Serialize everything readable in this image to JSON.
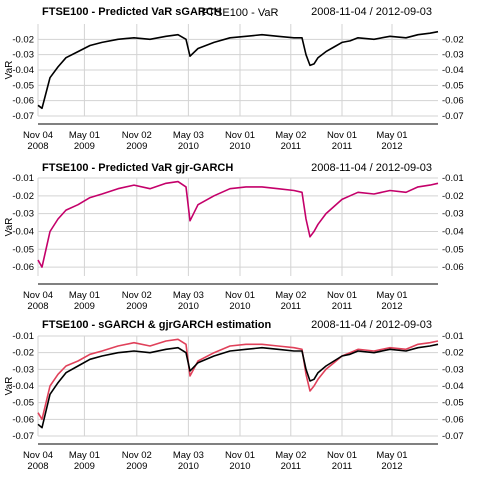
{
  "figure_title": "FTSE100 - VaR",
  "chart_data": [
    {
      "type": "line",
      "title": "FTSE100 - Predicted VaR sGARCH",
      "date_range": "2008-11-04 / 2012-09-03",
      "ylabel": "VaR",
      "ylim": [
        -0.07,
        -0.01
      ],
      "yticks": [
        "-0.02",
        "-0.03",
        "-0.04",
        "-0.05",
        "-0.06",
        "-0.07"
      ],
      "x_ticks": [
        {
          "t": 0.0,
          "line1": "Nov 04",
          "line2": "2008"
        },
        {
          "t": 0.116,
          "line1": "May 01",
          "line2": "2009"
        },
        {
          "t": 0.247,
          "line1": "Nov 02",
          "line2": "2009"
        },
        {
          "t": 0.376,
          "line1": "May 03",
          "line2": "2010"
        },
        {
          "t": 0.505,
          "line1": "Nov 01",
          "line2": "2010"
        },
        {
          "t": 0.632,
          "line1": "May 02",
          "line2": "2011"
        },
        {
          "t": 0.76,
          "line1": "Nov 01",
          "line2": "2011"
        },
        {
          "t": 0.885,
          "line1": "May 01",
          "line2": "2012"
        }
      ],
      "grid": true,
      "series": [
        {
          "color": "#000000",
          "x": [
            0,
            0.01,
            0.02,
            0.03,
            0.05,
            0.07,
            0.1,
            0.13,
            0.16,
            0.2,
            0.24,
            0.28,
            0.32,
            0.35,
            0.37,
            0.38,
            0.4,
            0.44,
            0.48,
            0.52,
            0.56,
            0.6,
            0.64,
            0.66,
            0.67,
            0.68,
            0.69,
            0.7,
            0.72,
            0.74,
            0.76,
            0.78,
            0.8,
            0.84,
            0.88,
            0.92,
            0.95,
            0.98,
            1.0
          ],
          "values": [
            -0.063,
            -0.065,
            -0.055,
            -0.045,
            -0.038,
            -0.032,
            -0.028,
            -0.024,
            -0.022,
            -0.02,
            -0.019,
            -0.02,
            -0.018,
            -0.017,
            -0.02,
            -0.031,
            -0.026,
            -0.022,
            -0.019,
            -0.018,
            -0.017,
            -0.018,
            -0.019,
            -0.019,
            -0.03,
            -0.037,
            -0.036,
            -0.032,
            -0.028,
            -0.025,
            -0.022,
            -0.021,
            -0.019,
            -0.02,
            -0.018,
            -0.019,
            -0.017,
            -0.016,
            -0.015
          ]
        }
      ]
    },
    {
      "type": "line",
      "title": "FTSE100 - Predicted VaR gjr-GARCH",
      "date_range": "2008-11-04 / 2012-09-03",
      "ylabel": "VaR",
      "ylim": [
        -0.065,
        -0.01
      ],
      "yticks": [
        "-0.01",
        "-0.02",
        "-0.03",
        "-0.04",
        "-0.05",
        "-0.06"
      ],
      "x_ticks": [
        {
          "t": 0.0,
          "line1": "Nov 04",
          "line2": "2008"
        },
        {
          "t": 0.116,
          "line1": "May 01",
          "line2": "2009"
        },
        {
          "t": 0.247,
          "line1": "Nov 02",
          "line2": "2009"
        },
        {
          "t": 0.376,
          "line1": "May 03",
          "line2": "2010"
        },
        {
          "t": 0.505,
          "line1": "Nov 01",
          "line2": "2010"
        },
        {
          "t": 0.632,
          "line1": "May 02",
          "line2": "2011"
        },
        {
          "t": 0.76,
          "line1": "Nov 01",
          "line2": "2011"
        },
        {
          "t": 0.885,
          "line1": "May 01",
          "line2": "2012"
        }
      ],
      "grid": true,
      "series": [
        {
          "color": "#c4006a",
          "x": [
            0,
            0.01,
            0.02,
            0.03,
            0.05,
            0.07,
            0.1,
            0.13,
            0.16,
            0.2,
            0.24,
            0.28,
            0.32,
            0.35,
            0.37,
            0.38,
            0.4,
            0.44,
            0.48,
            0.52,
            0.56,
            0.6,
            0.64,
            0.66,
            0.67,
            0.68,
            0.69,
            0.7,
            0.72,
            0.74,
            0.76,
            0.78,
            0.8,
            0.84,
            0.88,
            0.92,
            0.95,
            0.98,
            1.0
          ],
          "values": [
            -0.056,
            -0.06,
            -0.05,
            -0.04,
            -0.033,
            -0.028,
            -0.025,
            -0.021,
            -0.019,
            -0.016,
            -0.014,
            -0.016,
            -0.013,
            -0.012,
            -0.015,
            -0.034,
            -0.025,
            -0.02,
            -0.016,
            -0.015,
            -0.015,
            -0.016,
            -0.017,
            -0.018,
            -0.033,
            -0.043,
            -0.04,
            -0.036,
            -0.03,
            -0.026,
            -0.022,
            -0.02,
            -0.018,
            -0.019,
            -0.017,
            -0.018,
            -0.015,
            -0.014,
            -0.013
          ]
        }
      ]
    },
    {
      "type": "line",
      "title": "FTSE100 - sGARCH & gjrGARCH estimation",
      "date_range": "2008-11-04 / 2012-09-03",
      "ylabel": "VaR",
      "ylim": [
        -0.07,
        -0.01
      ],
      "yticks": [
        "-0.01",
        "-0.02",
        "-0.03",
        "-0.04",
        "-0.05",
        "-0.06",
        "-0.07"
      ],
      "x_ticks": [
        {
          "t": 0.0,
          "line1": "Nov 04",
          "line2": "2008"
        },
        {
          "t": 0.116,
          "line1": "May 01",
          "line2": "2009"
        },
        {
          "t": 0.247,
          "line1": "Nov 02",
          "line2": "2009"
        },
        {
          "t": 0.376,
          "line1": "May 03",
          "line2": "2010"
        },
        {
          "t": 0.505,
          "line1": "Nov 01",
          "line2": "2010"
        },
        {
          "t": 0.632,
          "line1": "May 02",
          "line2": "2011"
        },
        {
          "t": 0.76,
          "line1": "Nov 01",
          "line2": "2011"
        },
        {
          "t": 0.885,
          "line1": "May 01",
          "line2": "2012"
        }
      ],
      "grid": true,
      "series": [
        {
          "color": "#e0415a",
          "x": [
            0,
            0.01,
            0.02,
            0.03,
            0.05,
            0.07,
            0.1,
            0.13,
            0.16,
            0.2,
            0.24,
            0.28,
            0.32,
            0.35,
            0.37,
            0.38,
            0.4,
            0.44,
            0.48,
            0.52,
            0.56,
            0.6,
            0.64,
            0.66,
            0.67,
            0.68,
            0.69,
            0.7,
            0.72,
            0.74,
            0.76,
            0.78,
            0.8,
            0.84,
            0.88,
            0.92,
            0.95,
            0.98,
            1.0
          ],
          "values": [
            -0.056,
            -0.06,
            -0.05,
            -0.04,
            -0.033,
            -0.028,
            -0.025,
            -0.021,
            -0.019,
            -0.016,
            -0.014,
            -0.016,
            -0.013,
            -0.012,
            -0.015,
            -0.034,
            -0.025,
            -0.02,
            -0.016,
            -0.015,
            -0.015,
            -0.016,
            -0.017,
            -0.018,
            -0.033,
            -0.043,
            -0.04,
            -0.036,
            -0.03,
            -0.026,
            -0.022,
            -0.02,
            -0.018,
            -0.019,
            -0.017,
            -0.018,
            -0.015,
            -0.014,
            -0.013
          ]
        },
        {
          "color": "#000000",
          "x": [
            0,
            0.01,
            0.02,
            0.03,
            0.05,
            0.07,
            0.1,
            0.13,
            0.16,
            0.2,
            0.24,
            0.28,
            0.32,
            0.35,
            0.37,
            0.38,
            0.4,
            0.44,
            0.48,
            0.52,
            0.56,
            0.6,
            0.64,
            0.66,
            0.67,
            0.68,
            0.69,
            0.7,
            0.72,
            0.74,
            0.76,
            0.78,
            0.8,
            0.84,
            0.88,
            0.92,
            0.95,
            0.98,
            1.0
          ],
          "values": [
            -0.063,
            -0.065,
            -0.055,
            -0.045,
            -0.038,
            -0.032,
            -0.028,
            -0.024,
            -0.022,
            -0.02,
            -0.019,
            -0.02,
            -0.018,
            -0.017,
            -0.02,
            -0.031,
            -0.026,
            -0.022,
            -0.019,
            -0.018,
            -0.017,
            -0.018,
            -0.019,
            -0.019,
            -0.03,
            -0.037,
            -0.036,
            -0.032,
            -0.028,
            -0.025,
            -0.022,
            -0.021,
            -0.019,
            -0.02,
            -0.018,
            -0.019,
            -0.017,
            -0.016,
            -0.015
          ]
        }
      ]
    }
  ]
}
